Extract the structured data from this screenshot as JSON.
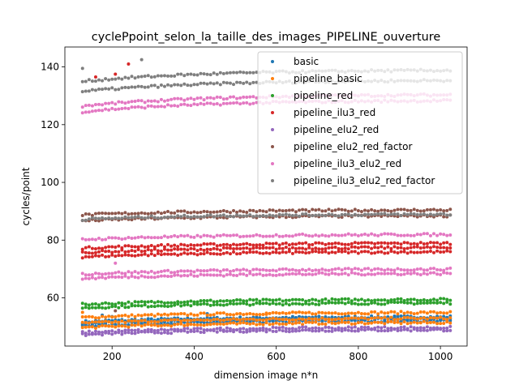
{
  "chart_data": {
    "type": "scatter",
    "title": "cyclePpoint_selon_la_taille_des_images_PIPELINE_ouverture",
    "xlabel": "dimension image n*n",
    "ylabel": "cycles/point",
    "xlim": [
      85,
      1065
    ],
    "ylim": [
      43.3,
      146.9
    ],
    "xticks": [
      200,
      400,
      600,
      800,
      1000
    ],
    "yticks": [
      60,
      80,
      100,
      120,
      140
    ],
    "grid": false,
    "legend_position": "upper right",
    "x_start": 128,
    "x_step": 8,
    "x_count": 113,
    "series": [
      {
        "name": "basic",
        "color": "#1f77b4",
        "base": 52.3,
        "rows": [
          53.5,
          52.9,
          52.1
        ],
        "outliers": [
          [
            176,
            54.0
          ],
          [
            432,
            54.5
          ],
          [
            200,
            53.5
          ]
        ]
      },
      {
        "name": "pipeline_basic",
        "color": "#ff7f0e",
        "base": 51.8,
        "rows": [
          55.0,
          53.0,
          51.5
        ],
        "outliers": [
          [
            128,
            55.0
          ],
          [
            576,
            54.3
          ],
          [
            384,
            51.0
          ]
        ]
      },
      {
        "name": "pipeline_red",
        "color": "#2ca02c",
        "base": 58.5,
        "rows": [
          59.5,
          58.3
        ],
        "outliers": []
      },
      {
        "name": "pipeline_ilu3_red",
        "color": "#d62728",
        "base": 77.0,
        "rows": [
          79.0,
          77.5,
          76.0
        ],
        "outliers": [
          [
            240,
            141.0
          ],
          [
            208,
            137.5
          ],
          [
            160,
            136.5
          ]
        ]
      },
      {
        "name": "pipeline_elu2_red",
        "color": "#9467bd",
        "base": 49.5,
        "rows": [
          49.8,
          49.0
        ],
        "outliers": []
      },
      {
        "name": "pipeline_elu2_red_factor",
        "color": "#8c564b",
        "base": 89.0,
        "rows": [
          90.5,
          88.5
        ],
        "outliers": [
          [
            208,
            55.5
          ]
        ]
      },
      {
        "name": "pipeline_ilu3_elu2_red",
        "color": "#e377c2",
        "base": 81.0,
        "rows": [
          130.5,
          128.5,
          82.0,
          70.0,
          68.5
        ],
        "outliers": [
          [
            208,
            72.0
          ]
        ]
      },
      {
        "name": "pipeline_ilu3_elu2_red_factor",
        "color": "#7f7f7f",
        "base": 137.0,
        "rows": [
          139.0,
          135.5,
          89.0
        ],
        "outliers": [
          [
            272,
            142.5
          ],
          [
            128,
            139.5
          ]
        ]
      }
    ]
  }
}
